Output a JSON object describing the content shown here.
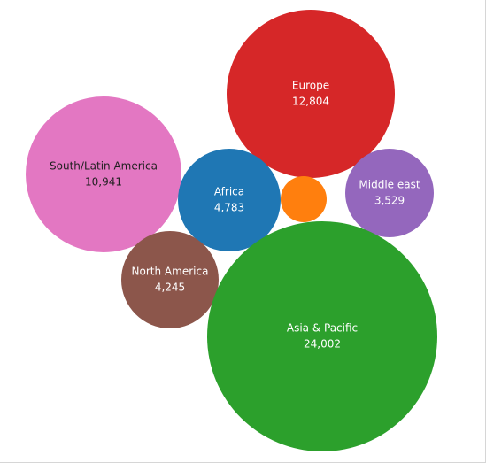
{
  "chart_data": {
    "type": "packed-bubble",
    "legend": "none",
    "grid": false,
    "series": [
      {
        "name": "Europe",
        "value": 12804,
        "value_label": "12,804",
        "color": "#d62728",
        "text_color": "#ffffff"
      },
      {
        "name": "South/Latin America",
        "value": 10941,
        "value_label": "10,941",
        "color": "#e377c2",
        "text_color": "#1f1f1f"
      },
      {
        "name": "Africa",
        "value": 4783,
        "value_label": "4,783",
        "color": "#1f77b4",
        "text_color": "#ffffff"
      },
      {
        "name": "Middle east",
        "value": 3529,
        "value_label": "3,529",
        "color": "#9467bd",
        "text_color": "#ffffff"
      },
      {
        "name": "",
        "value": null,
        "value_label": "",
        "color": "#ff7f0e",
        "text_color": "#ffffff"
      },
      {
        "name": "North America",
        "value": 4245,
        "value_label": "4,245",
        "color": "#8c564b",
        "text_color": "#ffffff"
      },
      {
        "name": "Asia & Pacific",
        "value": 24002,
        "value_label": "24,002",
        "color": "#2ca02c",
        "text_color": "#ffffff"
      }
    ]
  }
}
